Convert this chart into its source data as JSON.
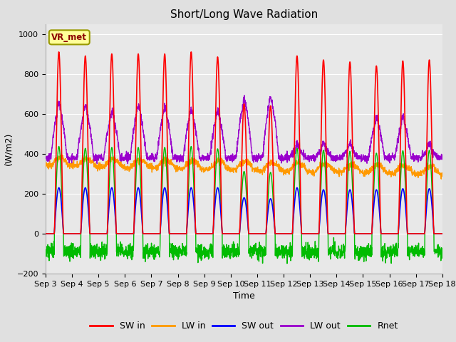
{
  "title": "Short/Long Wave Radiation",
  "ylabel": "(W/m2)",
  "xlabel": "Time",
  "ylim": [
    -200,
    1050
  ],
  "xlim": [
    0,
    15
  ],
  "xtick_labels": [
    "Sep 3",
    "Sep 4",
    "Sep 5",
    "Sep 6",
    "Sep 7",
    "Sep 8",
    "Sep 9",
    "Sep 10",
    "Sep 11",
    "Sep 12",
    "Sep 13",
    "Sep 14",
    "Sep 15",
    "Sep 16",
    "Sep 17",
    "Sep 18"
  ],
  "annotation_text": "VR_met",
  "legend_entries": [
    "SW in",
    "LW in",
    "SW out",
    "LW out",
    "Rnet"
  ],
  "legend_colors": [
    "#ff0000",
    "#ff9900",
    "#0000ff",
    "#9900cc",
    "#00bb00"
  ],
  "fig_bg_color": "#e0e0e0",
  "plot_bg_color": "#e8e8e8",
  "sw_in_color": "#ff0000",
  "lw_in_color": "#ff9900",
  "sw_out_color": "#0000ff",
  "lw_out_color": "#9900cc",
  "rnet_color": "#00bb00",
  "grid_color": "#ffffff",
  "num_days": 15
}
